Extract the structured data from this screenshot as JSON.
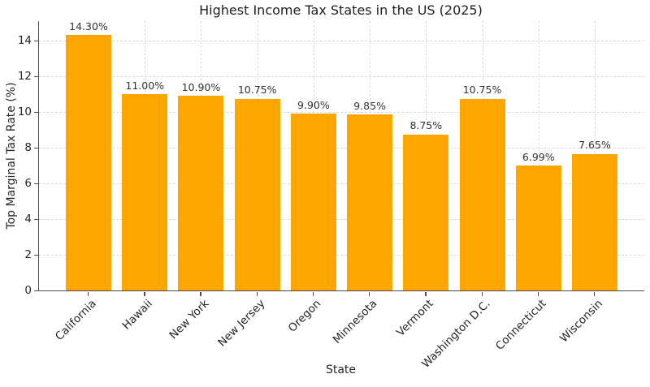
{
  "chart_data": {
    "type": "bar",
    "title": "Highest Income Tax States in the US (2025)",
    "xlabel": "State",
    "ylabel": "Top Marginal Tax Rate (%)",
    "categories": [
      "California",
      "Hawaii",
      "New York",
      "New Jersey",
      "Oregon",
      "Minnesota",
      "Vermont",
      "Washington D.C.",
      "Connecticut",
      "Wisconsin"
    ],
    "values": [
      14.3,
      11.0,
      10.9,
      10.75,
      9.9,
      9.85,
      8.75,
      10.75,
      6.99,
      7.65
    ],
    "value_labels": [
      "14.30%",
      "11.00%",
      "10.90%",
      "10.75%",
      "9.90%",
      "9.85%",
      "8.75%",
      "10.75%",
      "6.99%",
      "7.65%"
    ],
    "yticks": [
      0,
      2,
      4,
      6,
      8,
      10,
      12,
      14
    ],
    "ylim": [
      0,
      15.09
    ],
    "grid": true,
    "grid_style": "dashed",
    "legend": null,
    "bar_color": "#FFA500",
    "grid_color": "#d8d8d8",
    "axis_color": "#4d4d4d",
    "text_color": "#262626"
  }
}
